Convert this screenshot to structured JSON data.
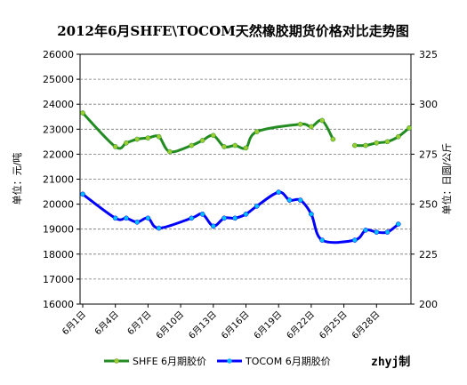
{
  "chart_data": {
    "type": "line",
    "title": "2012年6月SHFE\\TOCOM天然橡胶期货价格对比走势图",
    "ylabel_left": "单位：元/吨",
    "ylabel_right": "单位：日圆/公斤",
    "ylim_left": [
      16000,
      26000
    ],
    "ylim_right": [
      200,
      325
    ],
    "yticks_left": [
      16000,
      17000,
      18000,
      19000,
      20000,
      21000,
      22000,
      23000,
      24000,
      25000,
      26000
    ],
    "yticks_right": [
      200,
      225,
      250,
      275,
      300,
      325
    ],
    "grid": true,
    "legend_position": "bottom",
    "credit": "zhyj制",
    "x_tick_labels": [
      "6月1日",
      "6月4日",
      "6月7日",
      "6月10日",
      "6月13日",
      "6月16日",
      "6月19日",
      "6月22日",
      "6月25日",
      "6月28日"
    ],
    "x_tick_days": [
      1,
      4,
      7,
      10,
      13,
      16,
      19,
      22,
      25,
      28
    ],
    "x_range": [
      1,
      30
    ],
    "series": [
      {
        "name": "SHFE 6月期胶价",
        "axis": "left",
        "color": "#228B22",
        "marker_color": "#9ACD32",
        "points": [
          [
            1,
            23650
          ],
          [
            4,
            22300
          ],
          [
            5,
            22450
          ],
          [
            6,
            22600
          ],
          [
            7,
            22650
          ],
          [
            8,
            22700
          ],
          [
            9,
            22100
          ],
          [
            11,
            22350
          ],
          [
            12,
            22550
          ],
          [
            13,
            22750
          ],
          [
            14,
            22300
          ],
          [
            15,
            22350
          ],
          [
            16,
            22250
          ],
          [
            17,
            22900
          ],
          [
            21,
            23200
          ],
          [
            22,
            23100
          ],
          [
            23,
            23350
          ],
          [
            24,
            22600
          ],
          [
            null,
            null
          ],
          [
            26,
            22350
          ],
          [
            27,
            22350
          ],
          [
            28,
            22450
          ],
          [
            29,
            22500
          ],
          [
            30,
            22700
          ],
          [
            31,
            23050
          ]
        ]
      },
      {
        "name": "TOCOM 6月期胶价",
        "axis": "right",
        "color": "#0000FF",
        "marker_color": "#00BFFF",
        "points": [
          [
            1,
            255
          ],
          [
            4,
            243
          ],
          [
            5,
            243
          ],
          [
            6,
            241
          ],
          [
            7,
            243
          ],
          [
            8,
            238
          ],
          [
            11,
            243
          ],
          [
            12,
            245
          ],
          [
            13,
            239
          ],
          [
            14,
            243
          ],
          [
            15,
            243
          ],
          [
            16,
            245
          ],
          [
            17,
            249
          ],
          [
            19,
            256
          ],
          [
            20,
            252
          ],
          [
            21,
            252
          ],
          [
            22,
            245
          ],
          [
            23,
            232
          ],
          [
            26,
            232
          ],
          [
            27,
            237
          ],
          [
            28,
            236
          ],
          [
            29,
            236
          ],
          [
            30,
            240
          ]
        ]
      }
    ]
  }
}
